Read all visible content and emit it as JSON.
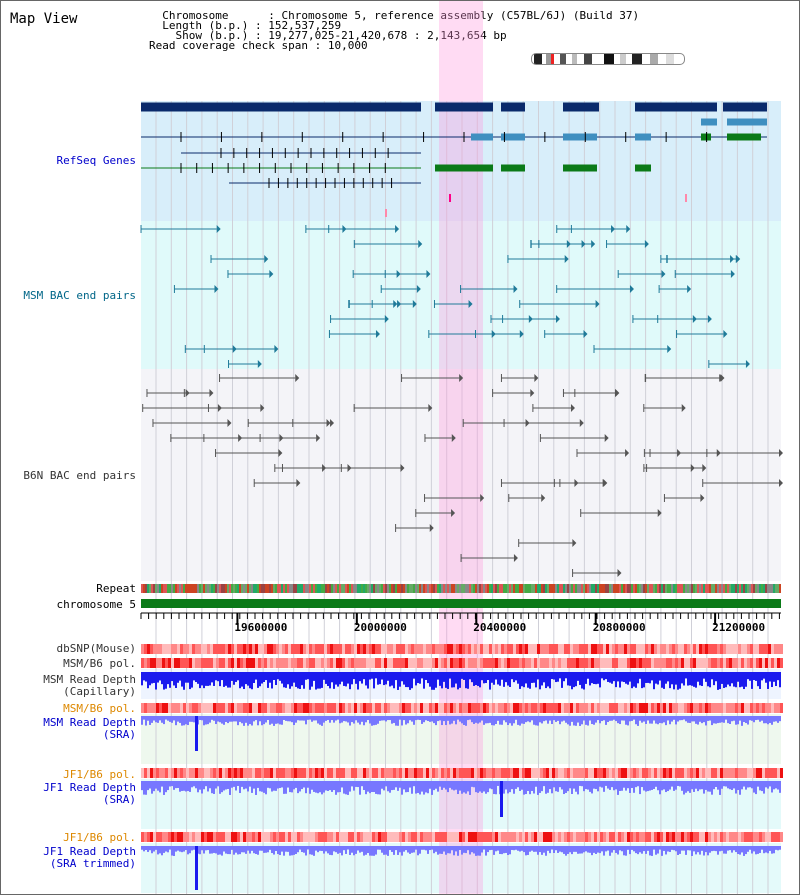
{
  "view_title": "Map View",
  "info": {
    "chromosome_key": "Chromosome",
    "chromosome_val": "Chromosome 5, reference assembly (C57BL/6J) (Build 37)",
    "length_key": "Length (b.p.)",
    "length_val": "152,537,259",
    "show_key": "Show (b.p.)",
    "show_val": "19,277,025-21,420,678 : 2,143,654 bp",
    "coverage_key": "Read coverage check span",
    "coverage_val": "10,000"
  },
  "tracks": {
    "refseq": "RefSeq Genes",
    "msm_bac": "MSM BAC end pairs",
    "b6n_bac": "B6N BAC end pairs",
    "repeat": "Repeat",
    "chromosome": "chromosome 5",
    "dbsnp": "dbSNP(Mouse)",
    "msm_b6_pol": "MSM/B6 pol.",
    "msm_depth_cap_1": "MSM Read Depth",
    "msm_depth_cap_2": "(Capillary)",
    "msm_b6_pol_2": "MSM/B6 pol.",
    "msm_depth_sra_1": "MSM Read Depth",
    "msm_depth_sra_2": "(SRA)",
    "jf1_b6_pol": "JF1/B6 pol.",
    "jf1_depth_sra_1": "JF1 Read Depth",
    "jf1_depth_sra_2": "(SRA)",
    "jf1_b6_pol_2": "JF1/B6 pol.",
    "jf1_depth_trim_1": "JF1 Read Depth",
    "jf1_depth_trim_2": "(SRA trimmed)"
  },
  "ruler": {
    "ticks": [
      "19600000",
      "20000000",
      "20400000",
      "20800000",
      "21200000"
    ],
    "tick_values": [
      19600000,
      20000000,
      20400000,
      20800000,
      21200000
    ]
  },
  "colors": {
    "refseq_dark": "#0a2a6b",
    "refseq_mid": "#3f8fc0",
    "refseq_green": "#0b7a18",
    "msm_line": "#1f7a99",
    "b6n_line": "#555555",
    "highlight": "#ff99dd",
    "chromosome_bar": "#0b7a18",
    "depth_blue": "#1a1aee",
    "depth_light": "#7777ff",
    "pol_red": "#ee2222",
    "label_orange": "#dd8800",
    "label_blue": "#0000cc",
    "label_teal": "#006688",
    "label_grey": "#333333"
  }
}
